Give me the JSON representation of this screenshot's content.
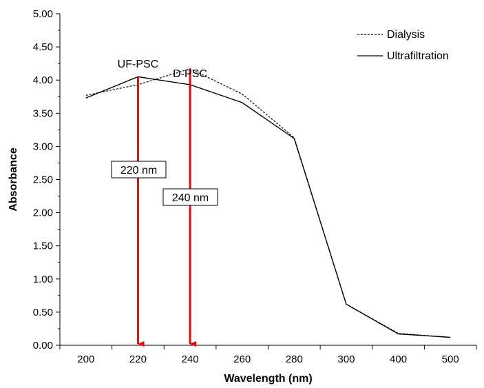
{
  "chart_data": {
    "type": "line",
    "categories": [
      "200",
      "220",
      "240",
      "260",
      "280",
      "300",
      "400",
      "500"
    ],
    "series": [
      {
        "name": "Dialysis",
        "values": [
          3.77,
          3.93,
          4.17,
          3.79,
          3.13,
          0.62,
          0.18,
          0.12
        ],
        "line_style": "dashed",
        "color": "#000000"
      },
      {
        "name": "Ultrafiltration",
        "values": [
          3.73,
          4.05,
          3.93,
          3.66,
          3.12,
          0.62,
          0.17,
          0.12
        ],
        "line_style": "solid",
        "color": "#000000"
      }
    ],
    "xlabel": "Wavelength (nm)",
    "ylabel": "Absorbance",
    "ylim": [
      0,
      5
    ],
    "ytick_step": 0.5,
    "ytick_labels": [
      "0.00",
      "0.50",
      "1.00",
      "1.50",
      "2.00",
      "2.50",
      "3.00",
      "3.50",
      "4.00",
      "4.50",
      "5.00"
    ],
    "legend_position": "top-right",
    "grid": false,
    "annotations": [
      {
        "peak_label": "UF-PSC",
        "box_label": "220 nm",
        "category": "220",
        "peak_value": 4.05,
        "color": "#ff0000"
      },
      {
        "peak_label": "D-PSC",
        "box_label": "240 nm",
        "category": "240",
        "peak_value": 4.17,
        "color": "#ff0000"
      }
    ]
  }
}
